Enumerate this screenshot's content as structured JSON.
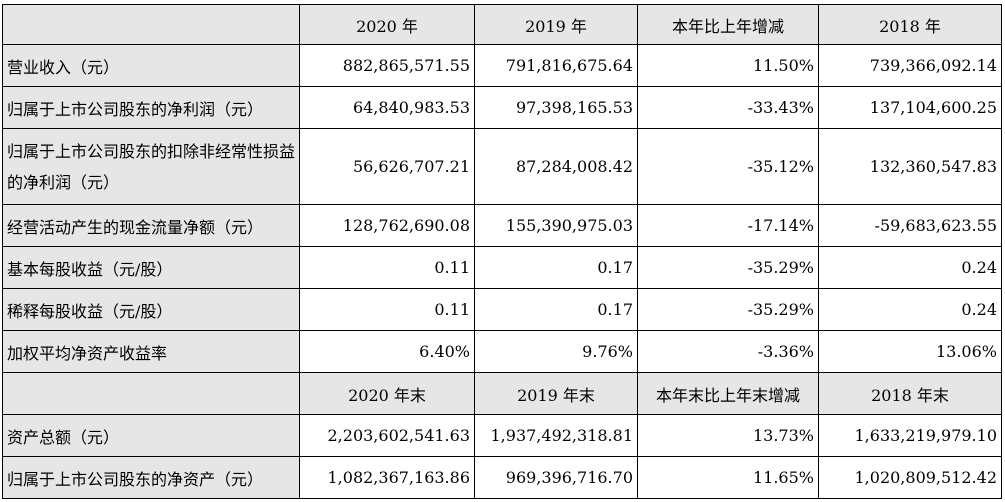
{
  "header1": [
    "2020 年",
    "2019 年",
    "本年比上年增减",
    "2018 年"
  ],
  "rows1": [
    {
      "label": "营业收入（元）",
      "values": [
        "882,865,571.55",
        "791,816,675.64",
        "11.50%",
        "739,366,092.14"
      ]
    },
    {
      "label": "归属于上市公司股东的净利润（元）",
      "values": [
        "64,840,983.53",
        "97,398,165.53",
        "-33.43%",
        "137,104,600.25"
      ]
    },
    {
      "label": "归属于上市公司股东的扣除非经常性损益的净利润（元）",
      "values": [
        "56,626,707.21",
        "87,284,008.42",
        "-35.12%",
        "132,360,547.83"
      ]
    },
    {
      "label": "经营活动产生的现金流量净额（元）",
      "values": [
        "128,762,690.08",
        "155,390,975.03",
        "-17.14%",
        "-59,683,623.55"
      ]
    },
    {
      "label": "基本每股收益（元/股）",
      "values": [
        "0.11",
        "0.17",
        "-35.29%",
        "0.24"
      ]
    },
    {
      "label": "稀释每股收益（元/股）",
      "values": [
        "0.11",
        "0.17",
        "-35.29%",
        "0.24"
      ]
    },
    {
      "label": "加权平均净资产收益率",
      "values": [
        "6.40%",
        "9.76%",
        "-3.36%",
        "13.06%"
      ]
    }
  ],
  "header2": [
    "2020 年末",
    "2019 年末",
    "本年末比上年末增减",
    "2018 年末"
  ],
  "rows2": [
    {
      "label": "资产总额（元）",
      "values": [
        "2,203,602,541.63",
        "1,937,492,318.81",
        "13.73%",
        "1,633,219,979.10"
      ]
    },
    {
      "label": "归属于上市公司股东的净资产（元）",
      "values": [
        "1,082,367,163.86",
        "969,396,716.70",
        "11.65%",
        "1,020,809,512.42"
      ]
    }
  ]
}
